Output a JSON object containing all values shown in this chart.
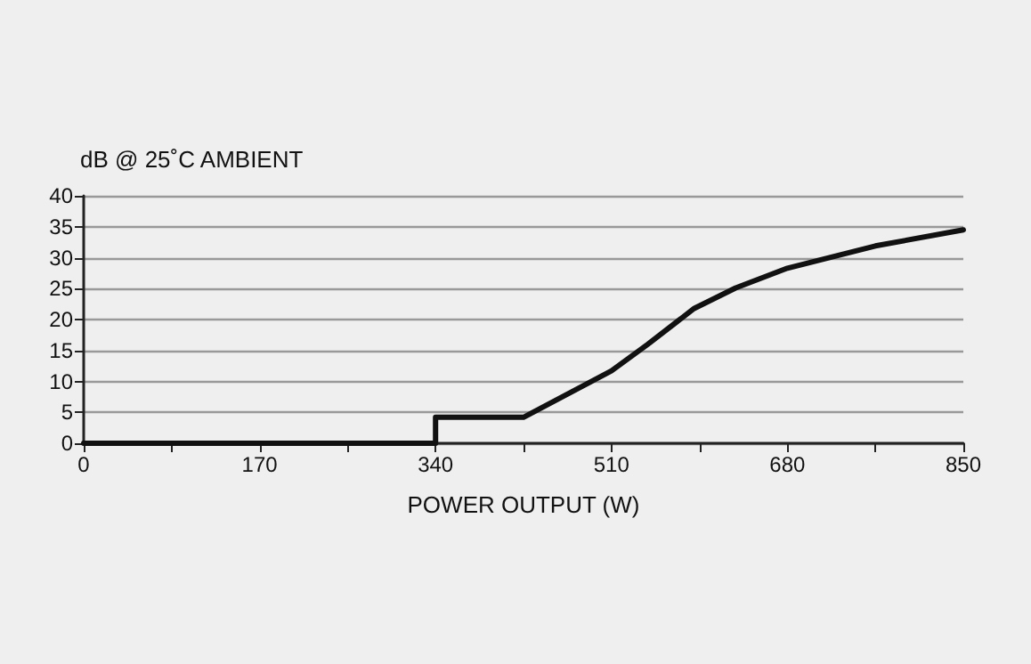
{
  "chart_data": {
    "type": "line",
    "title": "dB @ 25˚C AMBIENT",
    "xlabel": "POWER OUTPUT (W)",
    "x": [
      0,
      340,
      340,
      425,
      510,
      545,
      590,
      630,
      680,
      765,
      850
    ],
    "series": [
      {
        "color": "#111111",
        "values": [
          0,
          0,
          4.2,
          4.2,
          11.7,
          16,
          21.8,
          25.1,
          28.3,
          31.9,
          34.5
        ]
      }
    ],
    "xlim": [
      0,
      850
    ],
    "xticks": [
      0,
      {
        "value": 85,
        "label": null
      },
      170,
      {
        "value": 255,
        "label": null
      },
      340,
      {
        "value": 425,
        "label": null
      },
      510,
      {
        "value": 595,
        "label": null
      },
      680,
      {
        "value": 765,
        "label": null
      },
      850
    ],
    "ylim": [
      0,
      40
    ],
    "yticks": [
      0,
      5,
      10,
      15,
      20,
      25,
      30,
      35,
      40
    ],
    "grid": "y",
    "marker": "none",
    "line_style": "solid"
  }
}
